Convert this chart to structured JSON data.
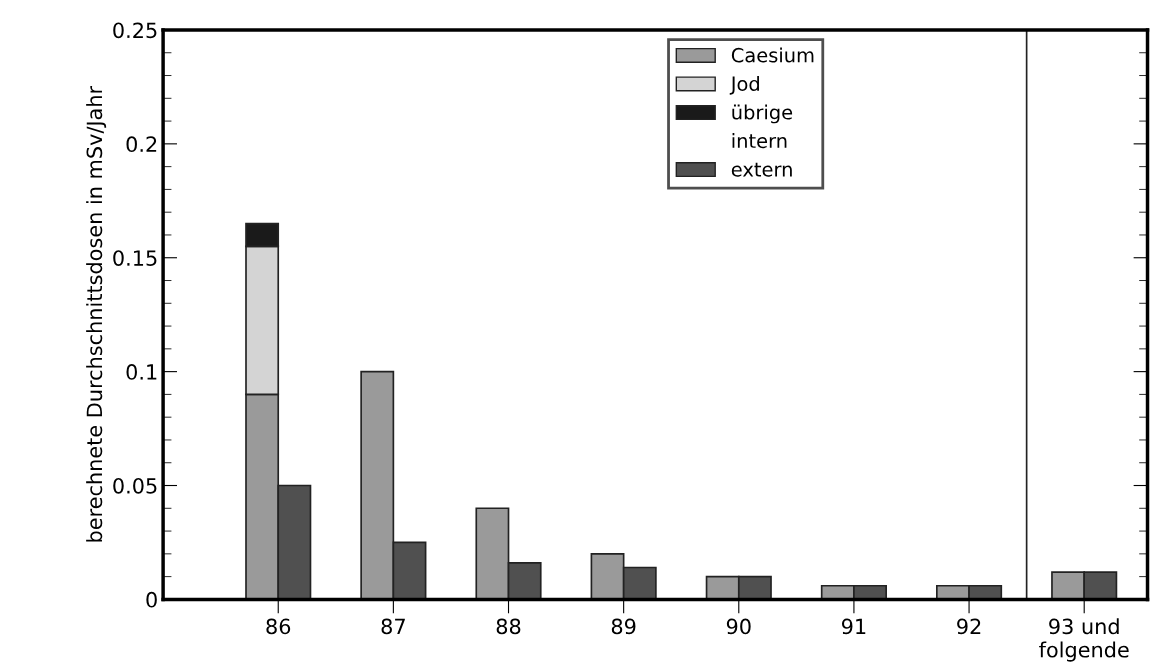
{
  "chart_data": {
    "type": "bar",
    "ylabel": "berechnete Durchschnittsdosen in mSv/Jahr",
    "categories": [
      "86",
      "87",
      "88",
      "89",
      "90",
      "91",
      "92",
      "93 und\nfolgende"
    ],
    "series": [
      {
        "name": "Caesium",
        "color": "#9a9a9a",
        "values": [
          0.09,
          0.1,
          0.04,
          0.02,
          0.01,
          0.006,
          0.006,
          0.012
        ]
      },
      {
        "name": "Jod",
        "color": "#d4d4d4",
        "base": [
          0.09,
          null,
          null,
          null,
          null,
          null,
          null,
          null
        ],
        "values": [
          0.065,
          null,
          null,
          null,
          null,
          null,
          null,
          null
        ]
      },
      {
        "name": "übrige",
        "color": "#1a1a1a",
        "base": [
          0.155,
          null,
          null,
          null,
          null,
          null,
          null,
          null
        ],
        "values": [
          0.01,
          null,
          null,
          null,
          null,
          null,
          null,
          null
        ]
      },
      {
        "name": "extern",
        "color": "#505050",
        "values": [
          0.05,
          0.025,
          0.016,
          0.014,
          0.01,
          0.006,
          0.006,
          0.012
        ]
      }
    ],
    "annotations": [
      "intern"
    ],
    "ylim": [
      0,
      0.25
    ],
    "yticks": [
      0,
      0.05,
      0.1,
      0.15,
      0.2,
      0.25
    ],
    "legend": "top right"
  }
}
